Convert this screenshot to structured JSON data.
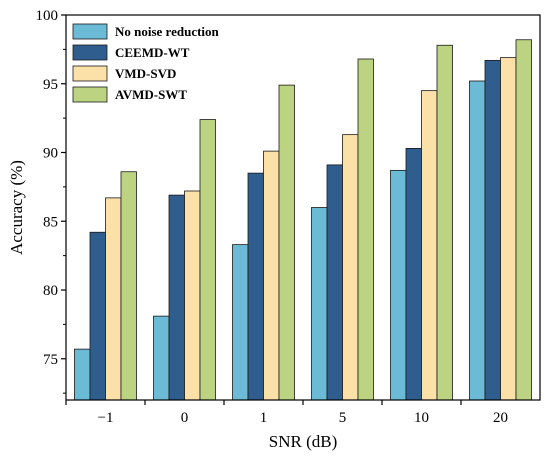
{
  "chart_data": {
    "type": "bar",
    "xlabel": "SNR (dB)",
    "ylabel": "Accuracy (%)",
    "categories": [
      "−1",
      "0",
      "1",
      "5",
      "10",
      "20"
    ],
    "ylim": [
      72,
      100
    ],
    "yticks": [
      75,
      80,
      85,
      90,
      95,
      100
    ],
    "grid": false,
    "legend_position": "top-left",
    "series": [
      {
        "name": "No noise reduction",
        "color": "#6bbad6",
        "values": [
          75.7,
          78.1,
          83.3,
          86.0,
          88.7,
          95.2
        ]
      },
      {
        "name": "CEEMD-WT",
        "color": "#2e5d8e",
        "values": [
          84.2,
          86.9,
          88.5,
          89.1,
          90.3,
          96.7
        ]
      },
      {
        "name": "VMD-SVD",
        "color": "#fbe0a8",
        "values": [
          86.7,
          87.2,
          90.1,
          91.3,
          94.5,
          96.9
        ]
      },
      {
        "name": "AVMD-SWT",
        "color": "#bcd482",
        "values": [
          88.6,
          92.4,
          94.9,
          96.8,
          97.8,
          98.2
        ]
      }
    ]
  }
}
